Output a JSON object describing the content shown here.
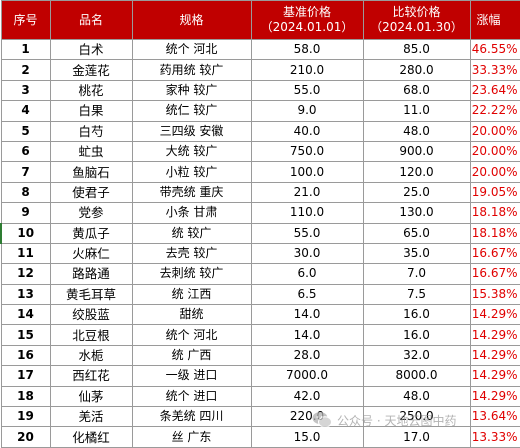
{
  "table": {
    "headers": {
      "no": "序号",
      "name": "品名",
      "spec": "规格",
      "price_start_label": "基准价格",
      "price_start_date": "（2024.01.01）",
      "price_end_label": "比较价格",
      "price_end_date": "（2024.01.30）",
      "change": "涨幅"
    },
    "rows": [
      {
        "no": "1",
        "name": "白术",
        "spec": "统个 河北",
        "p1": "58.0",
        "p2": "85.0",
        "chg": "46.55%"
      },
      {
        "no": "2",
        "name": "金莲花",
        "spec": "药用统 较广",
        "p1": "210.0",
        "p2": "280.0",
        "chg": "33.33%"
      },
      {
        "no": "3",
        "name": "桃花",
        "spec": "家种 较广",
        "p1": "55.0",
        "p2": "68.0",
        "chg": "23.64%"
      },
      {
        "no": "4",
        "name": "白果",
        "spec": "统仁 较广",
        "p1": "9.0",
        "p2": "11.0",
        "chg": "22.22%"
      },
      {
        "no": "5",
        "name": "白芍",
        "spec": "三四级 安徽",
        "p1": "40.0",
        "p2": "48.0",
        "chg": "20.00%"
      },
      {
        "no": "6",
        "name": "虻虫",
        "spec": "大统 较广",
        "p1": "750.0",
        "p2": "900.0",
        "chg": "20.00%"
      },
      {
        "no": "7",
        "name": "鱼脑石",
        "spec": "小粒 较广",
        "p1": "100.0",
        "p2": "120.0",
        "chg": "20.00%"
      },
      {
        "no": "8",
        "name": "使君子",
        "spec": "带壳统 重庆",
        "p1": "21.0",
        "p2": "25.0",
        "chg": "19.05%"
      },
      {
        "no": "9",
        "name": "党参",
        "spec": "小条 甘肃",
        "p1": "110.0",
        "p2": "130.0",
        "chg": "18.18%"
      },
      {
        "no": "10",
        "name": "黄瓜子",
        "spec": "统 较广",
        "p1": "55.0",
        "p2": "65.0",
        "chg": "18.18%"
      },
      {
        "no": "11",
        "name": "火麻仁",
        "spec": "去壳 较广",
        "p1": "30.0",
        "p2": "35.0",
        "chg": "16.67%"
      },
      {
        "no": "12",
        "name": "路路通",
        "spec": "去刺统 较广",
        "p1": "6.0",
        "p2": "7.0",
        "chg": "16.67%"
      },
      {
        "no": "13",
        "name": "黄毛耳草",
        "spec": "统 江西",
        "p1": "6.5",
        "p2": "7.5",
        "chg": "15.38%"
      },
      {
        "no": "14",
        "name": "绞股蓝",
        "spec": "甜统",
        "p1": "14.0",
        "p2": "16.0",
        "chg": "14.29%"
      },
      {
        "no": "15",
        "name": "北豆根",
        "spec": "统个 河北",
        "p1": "14.0",
        "p2": "16.0",
        "chg": "14.29%"
      },
      {
        "no": "16",
        "name": "水栀",
        "spec": "统 广西",
        "p1": "28.0",
        "p2": "32.0",
        "chg": "14.29%"
      },
      {
        "no": "17",
        "name": "西红花",
        "spec": "一级 进口",
        "p1": "7000.0",
        "p2": "8000.0",
        "chg": "14.29%"
      },
      {
        "no": "18",
        "name": "仙茅",
        "spec": "统个 进口",
        "p1": "42.0",
        "p2": "48.0",
        "chg": "14.29%"
      },
      {
        "no": "19",
        "name": "羌活",
        "spec": "条羌统 四川",
        "p1": "220.0",
        "p2": "250.0",
        "chg": "13.64%"
      },
      {
        "no": "20",
        "name": "化橘红",
        "spec": "丝 广东",
        "p1": "15.0",
        "p2": "17.0",
        "chg": "13.33%"
      }
    ]
  },
  "watermark": {
    "text": "公众号 · 天地云图中药",
    "icon": "wechat-icon"
  }
}
